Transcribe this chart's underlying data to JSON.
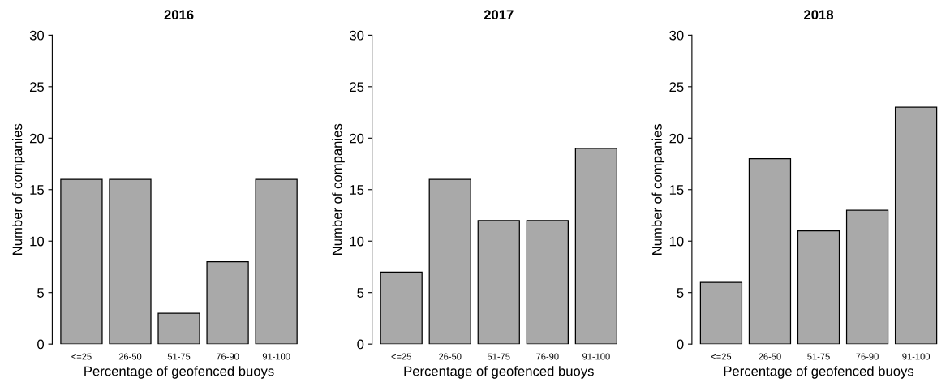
{
  "chart_data": [
    {
      "type": "bar",
      "title": "2016",
      "xlabel": "Percentage of geofenced buoys",
      "ylabel": "Number of companies",
      "categories": [
        "<=25",
        "26-50",
        "51-75",
        "76-90",
        "91-100"
      ],
      "values": [
        16,
        16,
        3,
        8,
        16
      ],
      "color": "#a9a9a9",
      "ylim": [
        0,
        30
      ],
      "yticks": [
        0,
        5,
        10,
        15,
        20,
        25,
        30
      ],
      "grid": false,
      "legend": false
    },
    {
      "type": "bar",
      "title": "2017",
      "xlabel": "Percentage of geofenced buoys",
      "ylabel": "Number of companies",
      "categories": [
        "<=25",
        "26-50",
        "51-75",
        "76-90",
        "91-100"
      ],
      "values": [
        7,
        16,
        12,
        12,
        19
      ],
      "color": "#a9a9a9",
      "ylim": [
        0,
        30
      ],
      "yticks": [
        0,
        5,
        10,
        15,
        20,
        25,
        30
      ],
      "grid": false,
      "legend": false
    },
    {
      "type": "bar",
      "title": "2018",
      "xlabel": "Percentage of geofenced buoys",
      "ylabel": "Number of companies",
      "categories": [
        "<=25",
        "26-50",
        "51-75",
        "76-90",
        "91-100"
      ],
      "values": [
        6,
        18,
        11,
        13,
        23
      ],
      "color": "#a9a9a9",
      "ylim": [
        0,
        30
      ],
      "yticks": [
        0,
        5,
        10,
        15,
        20,
        25,
        30
      ],
      "grid": false,
      "legend": false
    }
  ]
}
